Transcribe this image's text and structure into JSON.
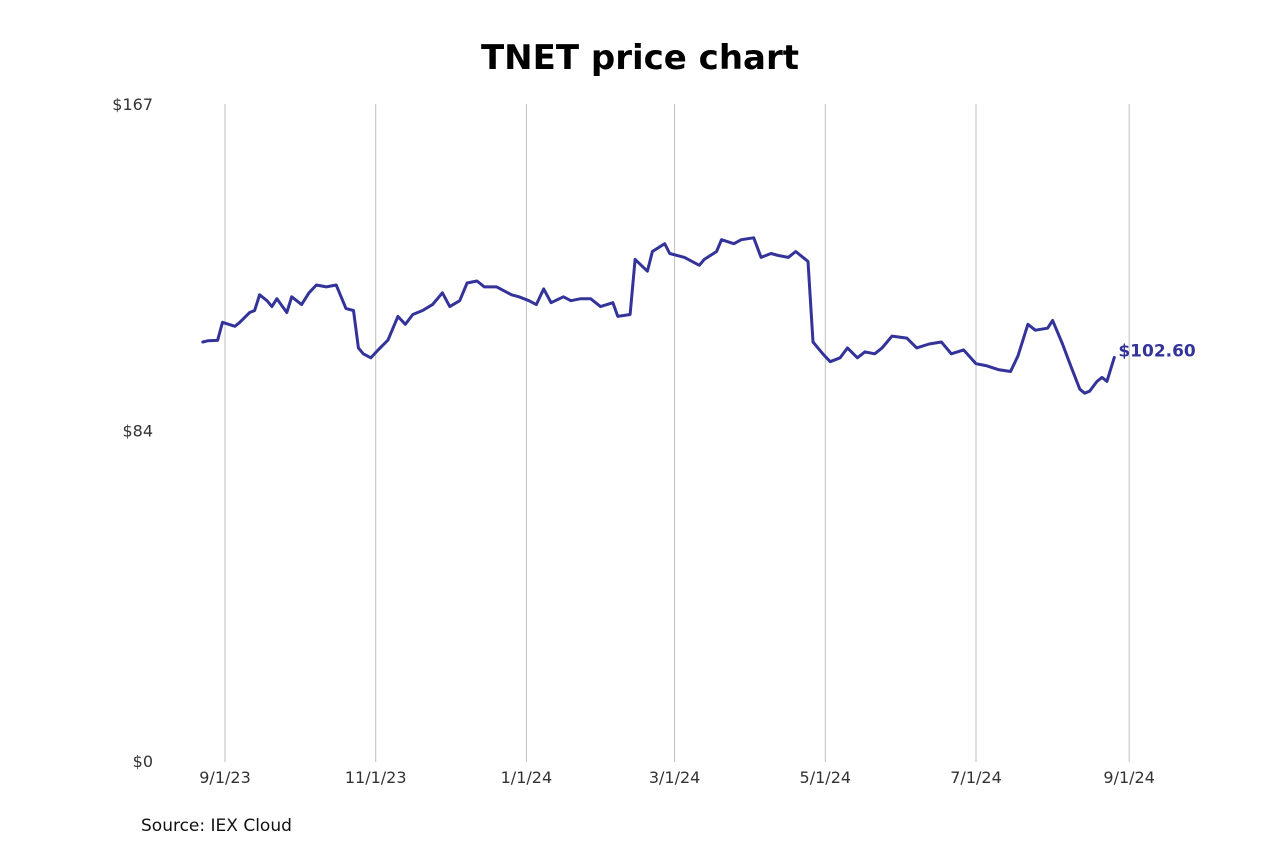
{
  "chart_data": {
    "type": "line",
    "title": "TNET price chart",
    "source": "Source: IEX Cloud",
    "line_color": "#333399",
    "grid_color": "#bfbfbf",
    "ylim": [
      0,
      167
    ],
    "y_ticks": [
      {
        "value": 0,
        "label": "$0"
      },
      {
        "value": 84,
        "label": "$84"
      },
      {
        "value": 167,
        "label": "$167"
      }
    ],
    "x_ticks": [
      {
        "date": "2023-09-01",
        "label": "9/1/23"
      },
      {
        "date": "2023-11-01",
        "label": "11/1/23"
      },
      {
        "date": "2024-01-01",
        "label": "1/1/24"
      },
      {
        "date": "2024-03-01",
        "label": "3/1/24"
      },
      {
        "date": "2024-05-01",
        "label": "5/1/24"
      },
      {
        "date": "2024-07-01",
        "label": "7/1/24"
      },
      {
        "date": "2024-09-01",
        "label": "9/1/24"
      }
    ],
    "grid": "vertical",
    "end_label": "$102.60",
    "series": [
      {
        "points": [
          [
            "2023-08-23",
            106.5
          ],
          [
            "2023-08-25",
            106.8
          ],
          [
            "2023-08-29",
            106.9
          ],
          [
            "2023-08-31",
            111.5
          ],
          [
            "2023-09-05",
            110.5
          ],
          [
            "2023-09-07",
            111.5
          ],
          [
            "2023-09-11",
            114.0
          ],
          [
            "2023-09-13",
            114.5
          ],
          [
            "2023-09-15",
            118.5
          ],
          [
            "2023-09-18",
            117.0
          ],
          [
            "2023-09-20",
            115.5
          ],
          [
            "2023-09-22",
            117.5
          ],
          [
            "2023-09-26",
            114.0
          ],
          [
            "2023-09-28",
            118.0
          ],
          [
            "2023-10-02",
            116.0
          ],
          [
            "2023-10-05",
            119.0
          ],
          [
            "2023-10-08",
            121.0
          ],
          [
            "2023-10-12",
            120.5
          ],
          [
            "2023-10-16",
            121.0
          ],
          [
            "2023-10-20",
            115.0
          ],
          [
            "2023-10-23",
            114.5
          ],
          [
            "2023-10-25",
            105.0
          ],
          [
            "2023-10-27",
            103.5
          ],
          [
            "2023-10-30",
            102.5
          ],
          [
            "2023-11-02",
            104.5
          ],
          [
            "2023-11-06",
            107.0
          ],
          [
            "2023-11-10",
            113.0
          ],
          [
            "2023-11-13",
            111.0
          ],
          [
            "2023-11-16",
            113.5
          ],
          [
            "2023-11-20",
            114.5
          ],
          [
            "2023-11-24",
            116.0
          ],
          [
            "2023-11-28",
            119.0
          ],
          [
            "2023-12-01",
            115.5
          ],
          [
            "2023-12-05",
            117.0
          ],
          [
            "2023-12-08",
            121.5
          ],
          [
            "2023-12-12",
            122.0
          ],
          [
            "2023-12-15",
            120.5
          ],
          [
            "2023-12-20",
            120.5
          ],
          [
            "2023-12-26",
            118.5
          ],
          [
            "2023-12-29",
            118.0
          ],
          [
            "2024-01-02",
            117.0
          ],
          [
            "2024-01-05",
            116.0
          ],
          [
            "2024-01-08",
            120.0
          ],
          [
            "2024-01-11",
            116.5
          ],
          [
            "2024-01-16",
            118.0
          ],
          [
            "2024-01-19",
            117.0
          ],
          [
            "2024-01-23",
            117.5
          ],
          [
            "2024-01-27",
            117.5
          ],
          [
            "2024-01-31",
            115.5
          ],
          [
            "2024-02-05",
            116.5
          ],
          [
            "2024-02-07",
            113.0
          ],
          [
            "2024-02-12",
            113.5
          ],
          [
            "2024-02-14",
            127.5
          ],
          [
            "2024-02-19",
            124.5
          ],
          [
            "2024-02-21",
            129.5
          ],
          [
            "2024-02-26",
            131.5
          ],
          [
            "2024-02-28",
            129.0
          ],
          [
            "2024-03-05",
            128.0
          ],
          [
            "2024-03-11",
            126.0
          ],
          [
            "2024-03-13",
            127.5
          ],
          [
            "2024-03-18",
            129.5
          ],
          [
            "2024-03-20",
            132.5
          ],
          [
            "2024-03-25",
            131.5
          ],
          [
            "2024-03-28",
            132.5
          ],
          [
            "2024-04-02",
            133.0
          ],
          [
            "2024-04-05",
            128.0
          ],
          [
            "2024-04-09",
            129.0
          ],
          [
            "2024-04-12",
            128.5
          ],
          [
            "2024-04-16",
            128.0
          ],
          [
            "2024-04-19",
            129.5
          ],
          [
            "2024-04-24",
            127.0
          ],
          [
            "2024-04-26",
            106.5
          ],
          [
            "2024-04-30",
            103.5
          ],
          [
            "2024-05-03",
            101.5
          ],
          [
            "2024-05-07",
            102.5
          ],
          [
            "2024-05-10",
            105.0
          ],
          [
            "2024-05-14",
            102.5
          ],
          [
            "2024-05-17",
            104.0
          ],
          [
            "2024-05-21",
            103.5
          ],
          [
            "2024-05-24",
            105.0
          ],
          [
            "2024-05-28",
            108.0
          ],
          [
            "2024-06-03",
            107.5
          ],
          [
            "2024-06-07",
            105.0
          ],
          [
            "2024-06-12",
            106.0
          ],
          [
            "2024-06-17",
            106.5
          ],
          [
            "2024-06-21",
            103.5
          ],
          [
            "2024-06-26",
            104.5
          ],
          [
            "2024-07-01",
            101.0
          ],
          [
            "2024-07-05",
            100.5
          ],
          [
            "2024-07-10",
            99.5
          ],
          [
            "2024-07-15",
            99.0
          ],
          [
            "2024-07-18",
            103.0
          ],
          [
            "2024-07-22",
            111.0
          ],
          [
            "2024-07-25",
            109.5
          ],
          [
            "2024-07-30",
            110.0
          ],
          [
            "2024-08-01",
            112.0
          ],
          [
            "2024-08-05",
            106.0
          ],
          [
            "2024-08-08",
            101.0
          ],
          [
            "2024-08-12",
            94.5
          ],
          [
            "2024-08-14",
            93.5
          ],
          [
            "2024-08-16",
            94.0
          ],
          [
            "2024-08-19",
            96.5
          ],
          [
            "2024-08-21",
            97.5
          ],
          [
            "2024-08-23",
            96.5
          ],
          [
            "2024-08-26",
            102.6
          ]
        ]
      }
    ]
  }
}
